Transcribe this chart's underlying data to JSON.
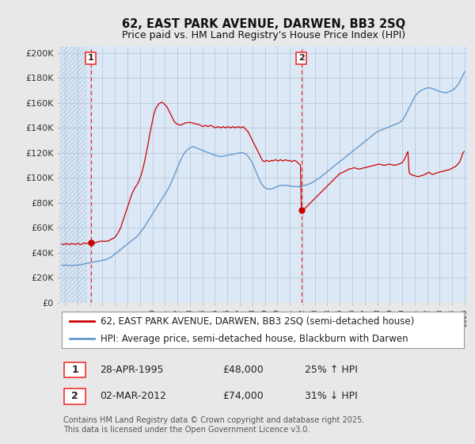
{
  "title1": "62, EAST PARK AVENUE, DARWEN, BB3 2SQ",
  "title2": "Price paid vs. HM Land Registry's House Price Index (HPI)",
  "ylabel_ticks": [
    "£0",
    "£20K",
    "£40K",
    "£60K",
    "£80K",
    "£100K",
    "£120K",
    "£140K",
    "£160K",
    "£180K",
    "£200K"
  ],
  "ytick_vals": [
    0,
    20000,
    40000,
    60000,
    80000,
    100000,
    120000,
    140000,
    160000,
    180000,
    200000
  ],
  "ylim": [
    0,
    205000
  ],
  "xlim_start": 1992.8,
  "xlim_end": 2025.5,
  "background_color": "#e8e8e8",
  "plot_bg_color": "#dce8f5",
  "hatch_color": "#c8d8e8",
  "grid_color": "#b0c4d8",
  "hpi_color": "#6699cc",
  "price_color": "#cc0000",
  "vline_color": "#ee3333",
  "marker1_x": 1995.32,
  "marker1_y": 48000,
  "marker2_x": 2012.17,
  "marker2_y": 74000,
  "legend_line1": "62, EAST PARK AVENUE, DARWEN, BB3 2SQ (semi-detached house)",
  "legend_line2": "HPI: Average price, semi-detached house, Blackburn with Darwen",
  "table_row1_num": "1",
  "table_row1_date": "28-APR-1995",
  "table_row1_price": "£48,000",
  "table_row1_hpi": "25% ↑ HPI",
  "table_row2_num": "2",
  "table_row2_date": "02-MAR-2012",
  "table_row2_price": "£74,000",
  "table_row2_hpi": "31% ↓ HPI",
  "footer": "Contains HM Land Registry data © Crown copyright and database right 2025.\nThis data is licensed under the Open Government Licence v3.0.",
  "title_fontsize": 10.5,
  "axis_fontsize": 8,
  "legend_fontsize": 8.5,
  "table_fontsize": 9,
  "footer_fontsize": 7,
  "hpi_data": [
    [
      1993.0,
      30000
    ],
    [
      1993.25,
      30200
    ],
    [
      1993.5,
      30000
    ],
    [
      1993.75,
      29800
    ],
    [
      1994.0,
      30000
    ],
    [
      1994.25,
      30200
    ],
    [
      1994.5,
      30500
    ],
    [
      1994.75,
      31000
    ],
    [
      1995.0,
      31500
    ],
    [
      1995.25,
      32000
    ],
    [
      1995.5,
      32500
    ],
    [
      1995.75,
      33000
    ],
    [
      1996.0,
      33500
    ],
    [
      1996.25,
      34000
    ],
    [
      1996.5,
      34500
    ],
    [
      1996.75,
      35500
    ],
    [
      1997.0,
      37000
    ],
    [
      1997.25,
      39000
    ],
    [
      1997.5,
      41000
    ],
    [
      1997.75,
      43000
    ],
    [
      1998.0,
      45000
    ],
    [
      1998.25,
      47000
    ],
    [
      1998.5,
      49000
    ],
    [
      1998.75,
      51000
    ],
    [
      1999.0,
      53000
    ],
    [
      1999.25,
      56000
    ],
    [
      1999.5,
      59000
    ],
    [
      1999.75,
      63000
    ],
    [
      2000.0,
      67000
    ],
    [
      2000.25,
      71000
    ],
    [
      2000.5,
      75000
    ],
    [
      2000.75,
      79000
    ],
    [
      2001.0,
      83000
    ],
    [
      2001.25,
      87000
    ],
    [
      2001.5,
      91000
    ],
    [
      2001.75,
      96000
    ],
    [
      2002.0,
      102000
    ],
    [
      2002.25,
      108000
    ],
    [
      2002.5,
      114000
    ],
    [
      2002.75,
      119000
    ],
    [
      2003.0,
      122000
    ],
    [
      2003.25,
      124000
    ],
    [
      2003.5,
      125000
    ],
    [
      2003.75,
      124000
    ],
    [
      2004.0,
      123000
    ],
    [
      2004.25,
      122000
    ],
    [
      2004.5,
      121000
    ],
    [
      2004.75,
      120000
    ],
    [
      2005.0,
      119000
    ],
    [
      2005.25,
      118000
    ],
    [
      2005.5,
      117500
    ],
    [
      2005.75,
      117000
    ],
    [
      2006.0,
      117500
    ],
    [
      2006.25,
      118000
    ],
    [
      2006.5,
      118500
    ],
    [
      2006.75,
      119000
    ],
    [
      2007.0,
      119500
    ],
    [
      2007.25,
      120000
    ],
    [
      2007.5,
      120000
    ],
    [
      2007.75,
      119000
    ],
    [
      2008.0,
      116000
    ],
    [
      2008.25,
      112000
    ],
    [
      2008.5,
      106000
    ],
    [
      2008.75,
      100000
    ],
    [
      2009.0,
      95000
    ],
    [
      2009.25,
      92000
    ],
    [
      2009.5,
      91000
    ],
    [
      2009.75,
      91000
    ],
    [
      2010.0,
      92000
    ],
    [
      2010.25,
      93000
    ],
    [
      2010.5,
      94000
    ],
    [
      2010.75,
      94000
    ],
    [
      2011.0,
      94000
    ],
    [
      2011.25,
      93500
    ],
    [
      2011.5,
      93000
    ],
    [
      2011.75,
      93000
    ],
    [
      2012.0,
      93000
    ],
    [
      2012.25,
      93500
    ],
    [
      2012.5,
      94000
    ],
    [
      2012.75,
      95000
    ],
    [
      2013.0,
      96000
    ],
    [
      2013.25,
      97500
    ],
    [
      2013.5,
      99000
    ],
    [
      2013.75,
      101000
    ],
    [
      2014.0,
      103000
    ],
    [
      2014.25,
      105000
    ],
    [
      2014.5,
      107000
    ],
    [
      2014.75,
      109000
    ],
    [
      2015.0,
      111000
    ],
    [
      2015.25,
      113000
    ],
    [
      2015.5,
      115000
    ],
    [
      2015.75,
      117000
    ],
    [
      2016.0,
      119000
    ],
    [
      2016.25,
      121000
    ],
    [
      2016.5,
      123000
    ],
    [
      2016.75,
      125000
    ],
    [
      2017.0,
      127000
    ],
    [
      2017.25,
      129000
    ],
    [
      2017.5,
      131000
    ],
    [
      2017.75,
      133000
    ],
    [
      2018.0,
      135000
    ],
    [
      2018.25,
      137000
    ],
    [
      2018.5,
      138000
    ],
    [
      2018.75,
      139000
    ],
    [
      2019.0,
      140000
    ],
    [
      2019.25,
      141000
    ],
    [
      2019.5,
      142000
    ],
    [
      2019.75,
      143000
    ],
    [
      2020.0,
      144000
    ],
    [
      2020.25,
      146000
    ],
    [
      2020.5,
      150000
    ],
    [
      2020.75,
      155000
    ],
    [
      2021.0,
      160000
    ],
    [
      2021.25,
      165000
    ],
    [
      2021.5,
      168000
    ],
    [
      2021.75,
      170000
    ],
    [
      2022.0,
      171000
    ],
    [
      2022.25,
      172000
    ],
    [
      2022.5,
      172000
    ],
    [
      2022.75,
      171000
    ],
    [
      2023.0,
      170000
    ],
    [
      2023.25,
      169000
    ],
    [
      2023.5,
      168500
    ],
    [
      2023.75,
      168000
    ],
    [
      2024.0,
      169000
    ],
    [
      2024.25,
      170000
    ],
    [
      2024.5,
      172000
    ],
    [
      2024.75,
      175000
    ],
    [
      2025.0,
      180000
    ],
    [
      2025.25,
      185000
    ]
  ],
  "price_data": [
    [
      1993.0,
      47000
    ],
    [
      1993.1,
      46500
    ],
    [
      1993.2,
      47200
    ],
    [
      1993.3,
      46800
    ],
    [
      1993.4,
      47500
    ],
    [
      1993.5,
      47000
    ],
    [
      1993.6,
      46500
    ],
    [
      1993.7,
      47000
    ],
    [
      1993.8,
      47500
    ],
    [
      1993.9,
      47000
    ],
    [
      1994.0,
      47000
    ],
    [
      1994.1,
      46800
    ],
    [
      1994.2,
      47200
    ],
    [
      1994.3,
      47500
    ],
    [
      1994.4,
      47000
    ],
    [
      1994.5,
      46500
    ],
    [
      1994.6,
      47000
    ],
    [
      1994.7,
      47500
    ],
    [
      1994.8,
      47800
    ],
    [
      1994.9,
      47500
    ],
    [
      1995.0,
      47500
    ],
    [
      1995.1,
      47800
    ],
    [
      1995.2,
      47500
    ],
    [
      1995.32,
      48000
    ],
    [
      1995.4,
      48200
    ],
    [
      1995.5,
      48500
    ],
    [
      1995.6,
      48200
    ],
    [
      1995.7,
      48000
    ],
    [
      1995.8,
      48500
    ],
    [
      1995.9,
      49000
    ],
    [
      1996.0,
      49000
    ],
    [
      1996.1,
      49200
    ],
    [
      1996.2,
      49500
    ],
    [
      1996.3,
      49200
    ],
    [
      1996.4,
      49000
    ],
    [
      1996.5,
      49500
    ],
    [
      1996.6,
      49200
    ],
    [
      1996.7,
      49500
    ],
    [
      1996.8,
      50000
    ],
    [
      1996.9,
      50500
    ],
    [
      1997.0,
      51000
    ],
    [
      1997.1,
      51500
    ],
    [
      1997.2,
      52000
    ],
    [
      1997.3,
      53000
    ],
    [
      1997.4,
      54500
    ],
    [
      1997.5,
      56000
    ],
    [
      1997.6,
      58000
    ],
    [
      1997.7,
      60000
    ],
    [
      1997.8,
      63000
    ],
    [
      1997.9,
      66000
    ],
    [
      1998.0,
      69000
    ],
    [
      1998.1,
      72000
    ],
    [
      1998.2,
      75000
    ],
    [
      1998.3,
      78000
    ],
    [
      1998.4,
      81000
    ],
    [
      1998.5,
      84000
    ],
    [
      1998.6,
      87000
    ],
    [
      1998.7,
      89000
    ],
    [
      1998.8,
      91000
    ],
    [
      1998.9,
      93000
    ],
    [
      1999.0,
      94000
    ],
    [
      1999.1,
      96000
    ],
    [
      1999.2,
      98500
    ],
    [
      1999.3,
      101000
    ],
    [
      1999.4,
      104000
    ],
    [
      1999.5,
      108000
    ],
    [
      1999.6,
      112000
    ],
    [
      1999.7,
      117000
    ],
    [
      1999.8,
      122000
    ],
    [
      1999.9,
      127000
    ],
    [
      2000.0,
      133000
    ],
    [
      2000.1,
      138000
    ],
    [
      2000.2,
      143000
    ],
    [
      2000.3,
      148000
    ],
    [
      2000.4,
      152000
    ],
    [
      2000.5,
      155000
    ],
    [
      2000.6,
      157000
    ],
    [
      2000.7,
      158000
    ],
    [
      2000.75,
      159000
    ],
    [
      2000.8,
      159500
    ],
    [
      2000.9,
      160000
    ],
    [
      2001.0,
      160500
    ],
    [
      2001.1,
      160000
    ],
    [
      2001.15,
      159500
    ],
    [
      2001.2,
      159000
    ],
    [
      2001.3,
      158000
    ],
    [
      2001.4,
      157000
    ],
    [
      2001.5,
      155000
    ],
    [
      2001.6,
      153000
    ],
    [
      2001.7,
      151000
    ],
    [
      2001.8,
      149000
    ],
    [
      2001.9,
      147000
    ],
    [
      2002.0,
      145000
    ],
    [
      2002.1,
      144000
    ],
    [
      2002.2,
      143000
    ],
    [
      2002.3,
      143000
    ],
    [
      2002.4,
      142500
    ],
    [
      2002.5,
      142000
    ],
    [
      2002.6,
      142500
    ],
    [
      2002.7,
      143000
    ],
    [
      2002.8,
      143500
    ],
    [
      2002.9,
      144000
    ],
    [
      2003.0,
      144000
    ],
    [
      2003.1,
      144200
    ],
    [
      2003.2,
      144500
    ],
    [
      2003.3,
      144200
    ],
    [
      2003.4,
      144000
    ],
    [
      2003.5,
      143800
    ],
    [
      2003.6,
      143500
    ],
    [
      2003.7,
      143200
    ],
    [
      2003.8,
      143000
    ],
    [
      2003.9,
      142800
    ],
    [
      2004.0,
      142500
    ],
    [
      2004.1,
      142000
    ],
    [
      2004.2,
      141500
    ],
    [
      2004.3,
      141000
    ],
    [
      2004.4,
      141500
    ],
    [
      2004.5,
      142000
    ],
    [
      2004.6,
      141500
    ],
    [
      2004.7,
      141000
    ],
    [
      2004.8,
      141500
    ],
    [
      2004.9,
      142000
    ],
    [
      2005.0,
      141500
    ],
    [
      2005.1,
      141000
    ],
    [
      2005.2,
      140500
    ],
    [
      2005.3,
      140000
    ],
    [
      2005.4,
      140500
    ],
    [
      2005.5,
      141000
    ],
    [
      2005.6,
      140500
    ],
    [
      2005.7,
      140000
    ],
    [
      2005.8,
      140500
    ],
    [
      2005.9,
      141000
    ],
    [
      2006.0,
      140500
    ],
    [
      2006.1,
      140000
    ],
    [
      2006.2,
      140500
    ],
    [
      2006.3,
      141000
    ],
    [
      2006.4,
      140500
    ],
    [
      2006.5,
      140000
    ],
    [
      2006.6,
      140500
    ],
    [
      2006.7,
      141000
    ],
    [
      2006.8,
      140500
    ],
    [
      2006.9,
      140000
    ],
    [
      2007.0,
      140500
    ],
    [
      2007.1,
      141000
    ],
    [
      2007.2,
      140500
    ],
    [
      2007.3,
      140000
    ],
    [
      2007.4,
      140500
    ],
    [
      2007.5,
      141000
    ],
    [
      2007.6,
      140000
    ],
    [
      2007.7,
      139000
    ],
    [
      2007.8,
      138000
    ],
    [
      2007.9,
      137000
    ],
    [
      2008.0,
      135000
    ],
    [
      2008.1,
      133000
    ],
    [
      2008.2,
      131000
    ],
    [
      2008.3,
      129000
    ],
    [
      2008.4,
      127000
    ],
    [
      2008.5,
      125000
    ],
    [
      2008.6,
      123000
    ],
    [
      2008.7,
      121000
    ],
    [
      2008.8,
      119000
    ],
    [
      2008.9,
      117000
    ],
    [
      2009.0,
      115000
    ],
    [
      2009.1,
      113500
    ],
    [
      2009.2,
      113000
    ],
    [
      2009.3,
      113500
    ],
    [
      2009.4,
      114000
    ],
    [
      2009.5,
      113500
    ],
    [
      2009.6,
      113000
    ],
    [
      2009.7,
      113500
    ],
    [
      2009.8,
      114000
    ],
    [
      2009.9,
      113500
    ],
    [
      2010.0,
      114000
    ],
    [
      2010.1,
      114500
    ],
    [
      2010.2,
      114000
    ],
    [
      2010.3,
      113500
    ],
    [
      2010.4,
      114000
    ],
    [
      2010.5,
      114500
    ],
    [
      2010.6,
      114000
    ],
    [
      2010.7,
      113500
    ],
    [
      2010.8,
      114000
    ],
    [
      2010.9,
      114500
    ],
    [
      2011.0,
      114000
    ],
    [
      2011.1,
      113500
    ],
    [
      2011.2,
      114000
    ],
    [
      2011.3,
      113500
    ],
    [
      2011.4,
      113000
    ],
    [
      2011.5,
      113500
    ],
    [
      2011.6,
      114000
    ],
    [
      2011.7,
      113500
    ],
    [
      2011.8,
      113000
    ],
    [
      2011.9,
      112000
    ],
    [
      2012.0,
      111000
    ],
    [
      2012.1,
      110000
    ],
    [
      2012.17,
      74000
    ],
    [
      2012.2,
      73000
    ],
    [
      2012.3,
      74000
    ],
    [
      2012.4,
      75000
    ],
    [
      2012.5,
      76000
    ],
    [
      2012.6,
      77000
    ],
    [
      2012.7,
      78000
    ],
    [
      2012.8,
      79000
    ],
    [
      2012.9,
      80000
    ],
    [
      2013.0,
      81000
    ],
    [
      2013.1,
      82000
    ],
    [
      2013.2,
      83000
    ],
    [
      2013.3,
      84000
    ],
    [
      2013.4,
      85000
    ],
    [
      2013.5,
      86000
    ],
    [
      2013.6,
      87000
    ],
    [
      2013.7,
      88000
    ],
    [
      2013.8,
      89000
    ],
    [
      2013.9,
      90000
    ],
    [
      2014.0,
      91000
    ],
    [
      2014.1,
      92000
    ],
    [
      2014.2,
      93000
    ],
    [
      2014.3,
      94000
    ],
    [
      2014.4,
      95000
    ],
    [
      2014.5,
      96000
    ],
    [
      2014.6,
      97000
    ],
    [
      2014.7,
      98000
    ],
    [
      2014.8,
      99000
    ],
    [
      2014.9,
      100000
    ],
    [
      2015.0,
      101000
    ],
    [
      2015.1,
      102000
    ],
    [
      2015.2,
      103000
    ],
    [
      2015.3,
      103500
    ],
    [
      2015.4,
      104000
    ],
    [
      2015.5,
      104500
    ],
    [
      2015.6,
      105000
    ],
    [
      2015.7,
      105500
    ],
    [
      2015.8,
      106000
    ],
    [
      2015.9,
      106500
    ],
    [
      2016.0,
      107000
    ],
    [
      2016.1,
      107200
    ],
    [
      2016.2,
      107500
    ],
    [
      2016.3,
      107800
    ],
    [
      2016.4,
      108000
    ],
    [
      2016.5,
      107800
    ],
    [
      2016.6,
      107500
    ],
    [
      2016.7,
      107200
    ],
    [
      2016.8,
      107000
    ],
    [
      2016.9,
      107200
    ],
    [
      2017.0,
      107500
    ],
    [
      2017.1,
      107800
    ],
    [
      2017.2,
      108000
    ],
    [
      2017.3,
      108200
    ],
    [
      2017.4,
      108500
    ],
    [
      2017.5,
      108800
    ],
    [
      2017.6,
      109000
    ],
    [
      2017.7,
      109200
    ],
    [
      2017.8,
      109500
    ],
    [
      2017.9,
      109800
    ],
    [
      2018.0,
      110000
    ],
    [
      2018.1,
      110200
    ],
    [
      2018.2,
      110500
    ],
    [
      2018.3,
      110800
    ],
    [
      2018.4,
      111000
    ],
    [
      2018.5,
      110800
    ],
    [
      2018.6,
      110500
    ],
    [
      2018.7,
      110200
    ],
    [
      2018.8,
      110000
    ],
    [
      2018.9,
      110200
    ],
    [
      2019.0,
      110500
    ],
    [
      2019.1,
      110800
    ],
    [
      2019.2,
      111000
    ],
    [
      2019.3,
      110800
    ],
    [
      2019.4,
      110500
    ],
    [
      2019.5,
      110200
    ],
    [
      2019.6,
      110000
    ],
    [
      2019.7,
      110200
    ],
    [
      2019.8,
      110500
    ],
    [
      2019.9,
      110800
    ],
    [
      2020.0,
      111000
    ],
    [
      2020.1,
      111500
    ],
    [
      2020.2,
      112000
    ],
    [
      2020.3,
      113000
    ],
    [
      2020.4,
      114500
    ],
    [
      2020.5,
      116500
    ],
    [
      2020.6,
      119000
    ],
    [
      2020.7,
      121000
    ],
    [
      2020.8,
      104000
    ],
    [
      2020.9,
      103000
    ],
    [
      2021.0,
      102500
    ],
    [
      2021.1,
      102000
    ],
    [
      2021.2,
      101800
    ],
    [
      2021.3,
      101500
    ],
    [
      2021.4,
      101200
    ],
    [
      2021.5,
      101000
    ],
    [
      2021.6,
      101200
    ],
    [
      2021.7,
      101500
    ],
    [
      2021.8,
      101800
    ],
    [
      2021.9,
      102000
    ],
    [
      2022.0,
      102500
    ],
    [
      2022.1,
      103000
    ],
    [
      2022.2,
      103500
    ],
    [
      2022.3,
      104000
    ],
    [
      2022.4,
      104500
    ],
    [
      2022.5,
      103500
    ],
    [
      2022.6,
      103000
    ],
    [
      2022.7,
      102800
    ],
    [
      2022.8,
      103000
    ],
    [
      2022.9,
      103500
    ],
    [
      2023.0,
      104000
    ],
    [
      2023.1,
      104200
    ],
    [
      2023.2,
      104500
    ],
    [
      2023.3,
      104800
    ],
    [
      2023.4,
      105000
    ],
    [
      2023.5,
      105200
    ],
    [
      2023.6,
      105500
    ],
    [
      2023.7,
      105800
    ],
    [
      2023.8,
      106000
    ],
    [
      2023.9,
      106200
    ],
    [
      2024.0,
      106500
    ],
    [
      2024.1,
      107000
    ],
    [
      2024.2,
      107500
    ],
    [
      2024.3,
      108000
    ],
    [
      2024.4,
      108500
    ],
    [
      2024.5,
      109000
    ],
    [
      2024.6,
      110000
    ],
    [
      2024.7,
      111000
    ],
    [
      2024.8,
      112000
    ],
    [
      2024.9,
      114000
    ],
    [
      2025.0,
      117000
    ],
    [
      2025.1,
      120000
    ],
    [
      2025.2,
      121000
    ]
  ]
}
